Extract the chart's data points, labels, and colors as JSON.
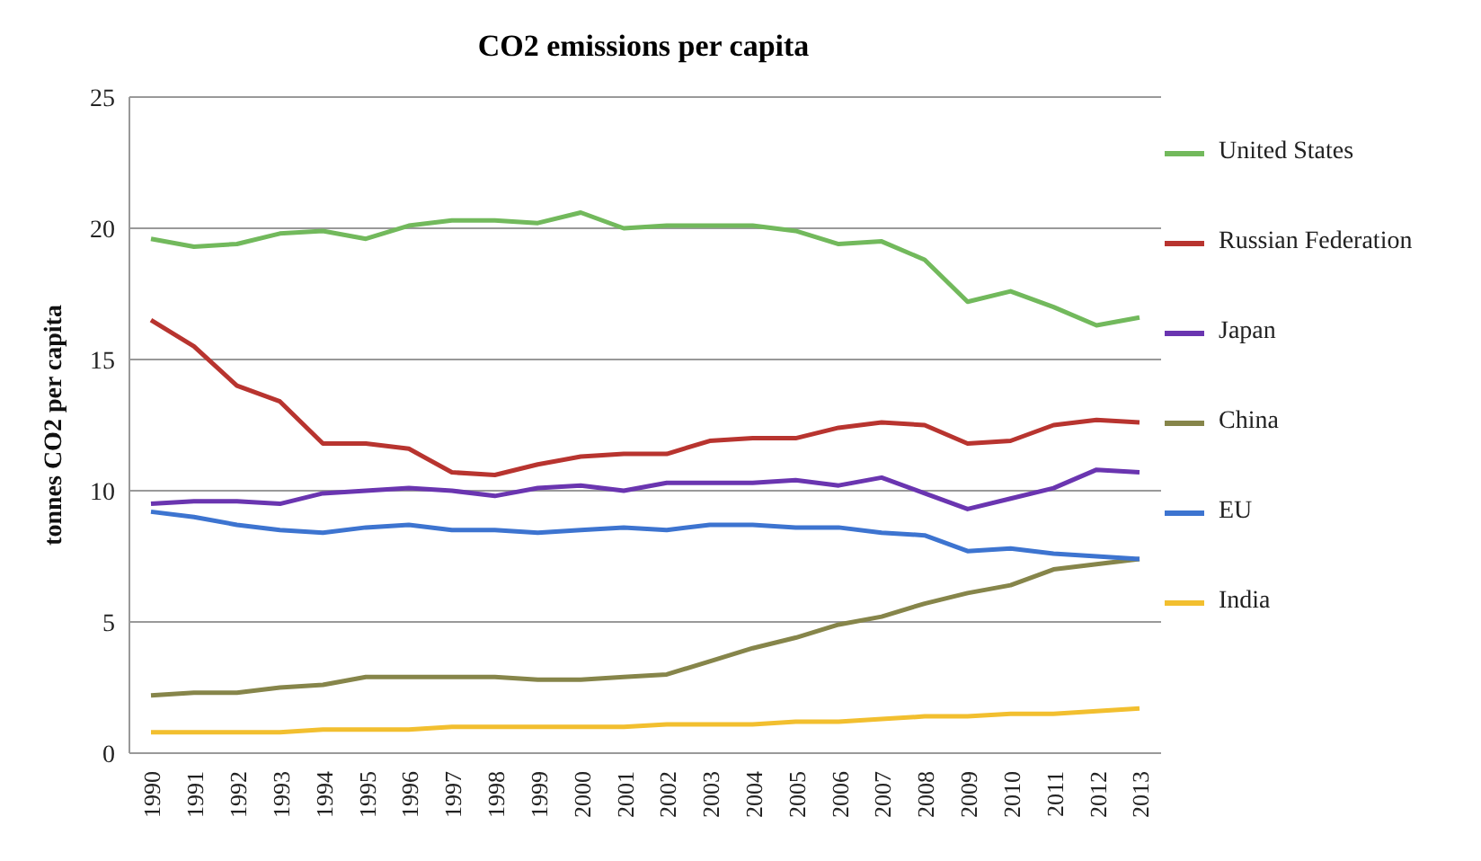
{
  "chart_data": {
    "type": "line",
    "title": "CO2 emissions per capita",
    "ylabel": "tonnes CO2 per capita",
    "categories": [
      "1990",
      "1991",
      "1992",
      "1993",
      "1994",
      "1995",
      "1996",
      "1997",
      "1998",
      "1999",
      "2000",
      "2001",
      "2002",
      "2003",
      "2004",
      "2005",
      "2006",
      "2007",
      "2008",
      "2009",
      "2010",
      "2011",
      "2012",
      "2013"
    ],
    "ylim": [
      0,
      25
    ],
    "yticks": [
      0,
      5,
      10,
      15,
      20,
      25
    ],
    "grid": "y",
    "legend": "right",
    "marker": "none",
    "line_style": "solid",
    "series": [
      {
        "name": "United States",
        "color": "#72b95c",
        "values": [
          19.6,
          19.3,
          19.4,
          19.8,
          19.9,
          19.6,
          20.1,
          20.3,
          20.3,
          20.2,
          20.6,
          20.0,
          20.1,
          20.1,
          20.1,
          19.9,
          19.4,
          19.5,
          18.8,
          17.2,
          17.6,
          17.0,
          16.3,
          16.6
        ]
      },
      {
        "name": "Russian Federation",
        "color": "#b8342f",
        "values": [
          16.5,
          15.5,
          14.0,
          13.4,
          11.8,
          11.8,
          11.6,
          10.7,
          10.6,
          11.0,
          11.3,
          11.4,
          11.4,
          11.9,
          12.0,
          12.0,
          12.4,
          12.6,
          12.5,
          11.8,
          11.9,
          12.5,
          12.7,
          12.6
        ]
      },
      {
        "name": "Japan",
        "color": "#6a35b0",
        "values": [
          9.5,
          9.6,
          9.6,
          9.5,
          9.9,
          10.0,
          10.1,
          10.0,
          9.8,
          10.1,
          10.2,
          10.0,
          10.3,
          10.3,
          10.3,
          10.4,
          10.2,
          10.5,
          9.9,
          9.3,
          9.7,
          10.1,
          10.8,
          10.7
        ]
      },
      {
        "name": "China",
        "color": "#86854a",
        "values": [
          2.2,
          2.3,
          2.3,
          2.5,
          2.6,
          2.9,
          2.9,
          2.9,
          2.9,
          2.8,
          2.8,
          2.9,
          3.0,
          3.5,
          4.0,
          4.4,
          4.9,
          5.2,
          5.7,
          6.1,
          6.4,
          7.0,
          7.2,
          7.4
        ]
      },
      {
        "name": "EU",
        "color": "#3d74d0",
        "values": [
          9.2,
          9.0,
          8.7,
          8.5,
          8.4,
          8.6,
          8.7,
          8.5,
          8.5,
          8.4,
          8.5,
          8.6,
          8.5,
          8.7,
          8.7,
          8.6,
          8.6,
          8.4,
          8.3,
          7.7,
          7.8,
          7.6,
          7.5,
          7.4
        ]
      },
      {
        "name": "India",
        "color": "#f2bf2f",
        "values": [
          0.8,
          0.8,
          0.8,
          0.8,
          0.9,
          0.9,
          0.9,
          1.0,
          1.0,
          1.0,
          1.0,
          1.0,
          1.1,
          1.1,
          1.1,
          1.2,
          1.2,
          1.3,
          1.4,
          1.4,
          1.5,
          1.5,
          1.6,
          1.7
        ]
      }
    ]
  }
}
